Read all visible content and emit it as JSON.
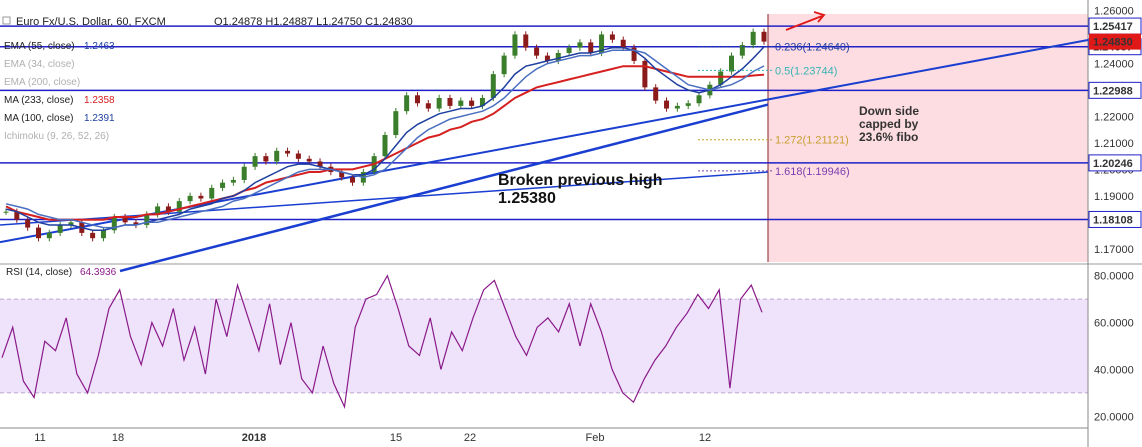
{
  "header": {
    "symbol": "Euro Fx/U.S. Dollar, 60, FXCM",
    "ohlc": "O1.24878 H1.24887 L1.24750 C1.24830"
  },
  "indicators": [
    {
      "label": "EMA (55, close)",
      "value": "1.2463",
      "color": "#1f3fa0",
      "muted": false
    },
    {
      "label": "EMA (34, close)",
      "value": "",
      "color": "#bfbfbf",
      "muted": true
    },
    {
      "label": "EMA (200, close)",
      "value": "",
      "color": "#bfbfbf",
      "muted": true
    },
    {
      "label": "MA (233, close)",
      "value": "1.2358",
      "color": "#d62020",
      "muted": false
    },
    {
      "label": "MA (100, close)",
      "value": "1.2391",
      "color": "#1f3fa0",
      "muted": false
    },
    {
      "label": "Ichimoku (9, 26, 52, 26)",
      "value": "",
      "color": "#bfbfbf",
      "muted": true
    }
  ],
  "annotations": {
    "broken_line1": "Broken previous high",
    "broken_line2": "1.25380",
    "down_line1": "Down side",
    "down_line2": "capped by",
    "down_line3": "23.6% fibo"
  },
  "fibo": [
    {
      "label": "0.236(1.24640)",
      "color": "#1f3fa0",
      "price": 1.2464
    },
    {
      "label": "0.5(1.23744)",
      "color": "#36b4b4",
      "price": 1.23744
    },
    {
      "label": "1.272(1.21121)",
      "color": "#c8a030",
      "price": 1.21121
    },
    {
      "label": "1.618(1.19946)",
      "color": "#7a3fb0",
      "price": 1.19946
    }
  ],
  "rsi": {
    "label": "RSI (14, close)",
    "value": "64.3936",
    "upper": 70,
    "lower": 30
  },
  "colors": {
    "level_line": "#2020c8",
    "trend_line": "#1a3fd0",
    "ema55": "#1f3fa0",
    "ma233": "#d62020",
    "ma100": "#4a6fc0",
    "candle_up": "#3a7d2a",
    "candle_down": "#8b1a1a",
    "rsi_line": "#8a1a8a",
    "rsi_band": "#efe3fb",
    "pink_zone": "#fddde2",
    "current_price_bg": "#e01818"
  },
  "chart_data": [
    {
      "type": "line",
      "title": "Euro Fx/U.S. Dollar, 60, FXCM",
      "x_tick_labels": [
        "11",
        "18",
        "2018",
        "15",
        "22",
        "Feb",
        "12"
      ],
      "y_ticks": [
        1.17,
        1.18,
        1.19,
        1.2,
        1.21,
        1.22,
        1.23,
        1.24,
        1.25,
        1.26
      ],
      "y_tick_labels": [
        "1.17000",
        "1.18000",
        "1.19000",
        "1.20000",
        "1.21000",
        "1.22000",
        "1.23000",
        "1.24000",
        "1.25000",
        "1.26000"
      ],
      "ylim": [
        1.165,
        1.261
      ],
      "horizontal_levels": [
        {
          "value": 1.25417,
          "label": "1.25417"
        },
        {
          "value": 1.24637,
          "label": "1.24637"
        },
        {
          "value": 1.22988,
          "label": "1.22988"
        },
        {
          "value": 1.20246,
          "label": "1.20246"
        },
        {
          "value": 1.18108,
          "label": "1.18108"
        }
      ],
      "current_price": {
        "value": 1.2483,
        "label": "1.24830"
      },
      "series": [
        {
          "name": "Price",
          "values": [
            1.184,
            1.181,
            1.178,
            1.174,
            1.176,
            1.179,
            1.18,
            1.176,
            1.174,
            1.177,
            1.182,
            1.18,
            1.179,
            1.183,
            1.186,
            1.184,
            1.188,
            1.19,
            1.189,
            1.193,
            1.195,
            1.196,
            1.201,
            1.205,
            1.203,
            1.207,
            1.206,
            1.204,
            1.203,
            1.201,
            1.199,
            1.197,
            1.195,
            1.199,
            1.205,
            1.213,
            1.222,
            1.228,
            1.225,
            1.223,
            1.227,
            1.224,
            1.226,
            1.224,
            1.227,
            1.236,
            1.243,
            1.251,
            1.246,
            1.243,
            1.241,
            1.244,
            1.246,
            1.248,
            1.244,
            1.251,
            1.249,
            1.246,
            1.241,
            1.231,
            1.226,
            1.223,
            1.224,
            1.225,
            1.228,
            1.232,
            1.237,
            1.243,
            1.247,
            1.252,
            1.2483
          ]
        },
        {
          "name": "MA (233, close)",
          "values": [
            1.186,
            1.184,
            1.183,
            1.182,
            1.181,
            1.181,
            1.181,
            1.181,
            1.181,
            1.181,
            1.182,
            1.182,
            1.182,
            1.183,
            1.183,
            1.184,
            1.185,
            1.186,
            1.187,
            1.188,
            1.189,
            1.19,
            1.192,
            1.193,
            1.195,
            1.196,
            1.197,
            1.198,
            1.199,
            1.199,
            1.2,
            1.2,
            1.2,
            1.201,
            1.202,
            1.204,
            1.206,
            1.208,
            1.21,
            1.212,
            1.213,
            1.215,
            1.216,
            1.218,
            1.219,
            1.221,
            1.224,
            1.227,
            1.229,
            1.231,
            1.232,
            1.233,
            1.234,
            1.235,
            1.236,
            1.237,
            1.238,
            1.239,
            1.239,
            1.239,
            1.238,
            1.237,
            1.236,
            1.235,
            1.235,
            1.235,
            1.235,
            1.235,
            1.235,
            1.2355,
            1.2358
          ]
        },
        {
          "name": "EMA (55, close)",
          "values": [
            1.185,
            1.184,
            1.182,
            1.18,
            1.179,
            1.179,
            1.179,
            1.178,
            1.177,
            1.177,
            1.178,
            1.179,
            1.179,
            1.18,
            1.181,
            1.182,
            1.183,
            1.185,
            1.186,
            1.187,
            1.189,
            1.19,
            1.192,
            1.195,
            1.197,
            1.199,
            1.201,
            1.202,
            1.202,
            1.201,
            1.2,
            1.199,
            1.198,
            1.198,
            1.2,
            1.204,
            1.209,
            1.214,
            1.217,
            1.219,
            1.221,
            1.222,
            1.223,
            1.223,
            1.224,
            1.227,
            1.231,
            1.236,
            1.239,
            1.24,
            1.241,
            1.242,
            1.243,
            1.244,
            1.244,
            1.245,
            1.246,
            1.246,
            1.245,
            1.242,
            1.238,
            1.235,
            1.232,
            1.23,
            1.229,
            1.23,
            1.232,
            1.235,
            1.238,
            1.242,
            1.2463
          ]
        },
        {
          "name": "MA (100, close)",
          "values": [
            1.187,
            1.186,
            1.185,
            1.183,
            1.182,
            1.181,
            1.181,
            1.18,
            1.179,
            1.178,
            1.178,
            1.179,
            1.179,
            1.18,
            1.18,
            1.181,
            1.182,
            1.183,
            1.184,
            1.185,
            1.186,
            1.188,
            1.189,
            1.191,
            1.193,
            1.195,
            1.197,
            1.199,
            1.2,
            1.2,
            1.2,
            1.199,
            1.198,
            1.197,
            1.198,
            1.2,
            1.204,
            1.208,
            1.212,
            1.215,
            1.217,
            1.219,
            1.22,
            1.221,
            1.222,
            1.224,
            1.227,
            1.231,
            1.235,
            1.238,
            1.24,
            1.241,
            1.242,
            1.243,
            1.243,
            1.244,
            1.245,
            1.245,
            1.245,
            1.244,
            1.241,
            1.238,
            1.235,
            1.232,
            1.231,
            1.23,
            1.231,
            1.232,
            1.234,
            1.237,
            1.2391
          ]
        }
      ],
      "trend_lines": [
        {
          "from": [
            0,
            1.1725
          ],
          "to": [
            1,
            1.25
          ]
        },
        {
          "from": [
            0.085,
            1.171
          ],
          "to": [
            1,
            1.248
          ]
        },
        {
          "from": [
            0.0,
            1.18
          ],
          "to": [
            0.57,
            1.1995
          ]
        }
      ]
    },
    {
      "type": "line",
      "title": "RSI (14, close)",
      "y_ticks": [
        20,
        40,
        60,
        80
      ],
      "y_tick_labels": [
        "20.0000",
        "40.0000",
        "60.0000",
        "80.0000"
      ],
      "ylim": [
        15,
        85
      ],
      "series": [
        {
          "name": "RSI (14, close)",
          "values": [
            45,
            58,
            35,
            28,
            52,
            48,
            62,
            38,
            30,
            46,
            66,
            74,
            54,
            42,
            60,
            50,
            66,
            44,
            58,
            38,
            70,
            54,
            76,
            62,
            48,
            68,
            42,
            60,
            36,
            30,
            50,
            34,
            24,
            58,
            70,
            72,
            80,
            66,
            50,
            46,
            62,
            40,
            56,
            48,
            62,
            74,
            78,
            66,
            54,
            46,
            58,
            62,
            56,
            68,
            50,
            68,
            56,
            40,
            30,
            26,
            36,
            44,
            50,
            58,
            64,
            72,
            66,
            74,
            32,
            70,
            76,
            64.3936
          ]
        }
      ]
    }
  ]
}
